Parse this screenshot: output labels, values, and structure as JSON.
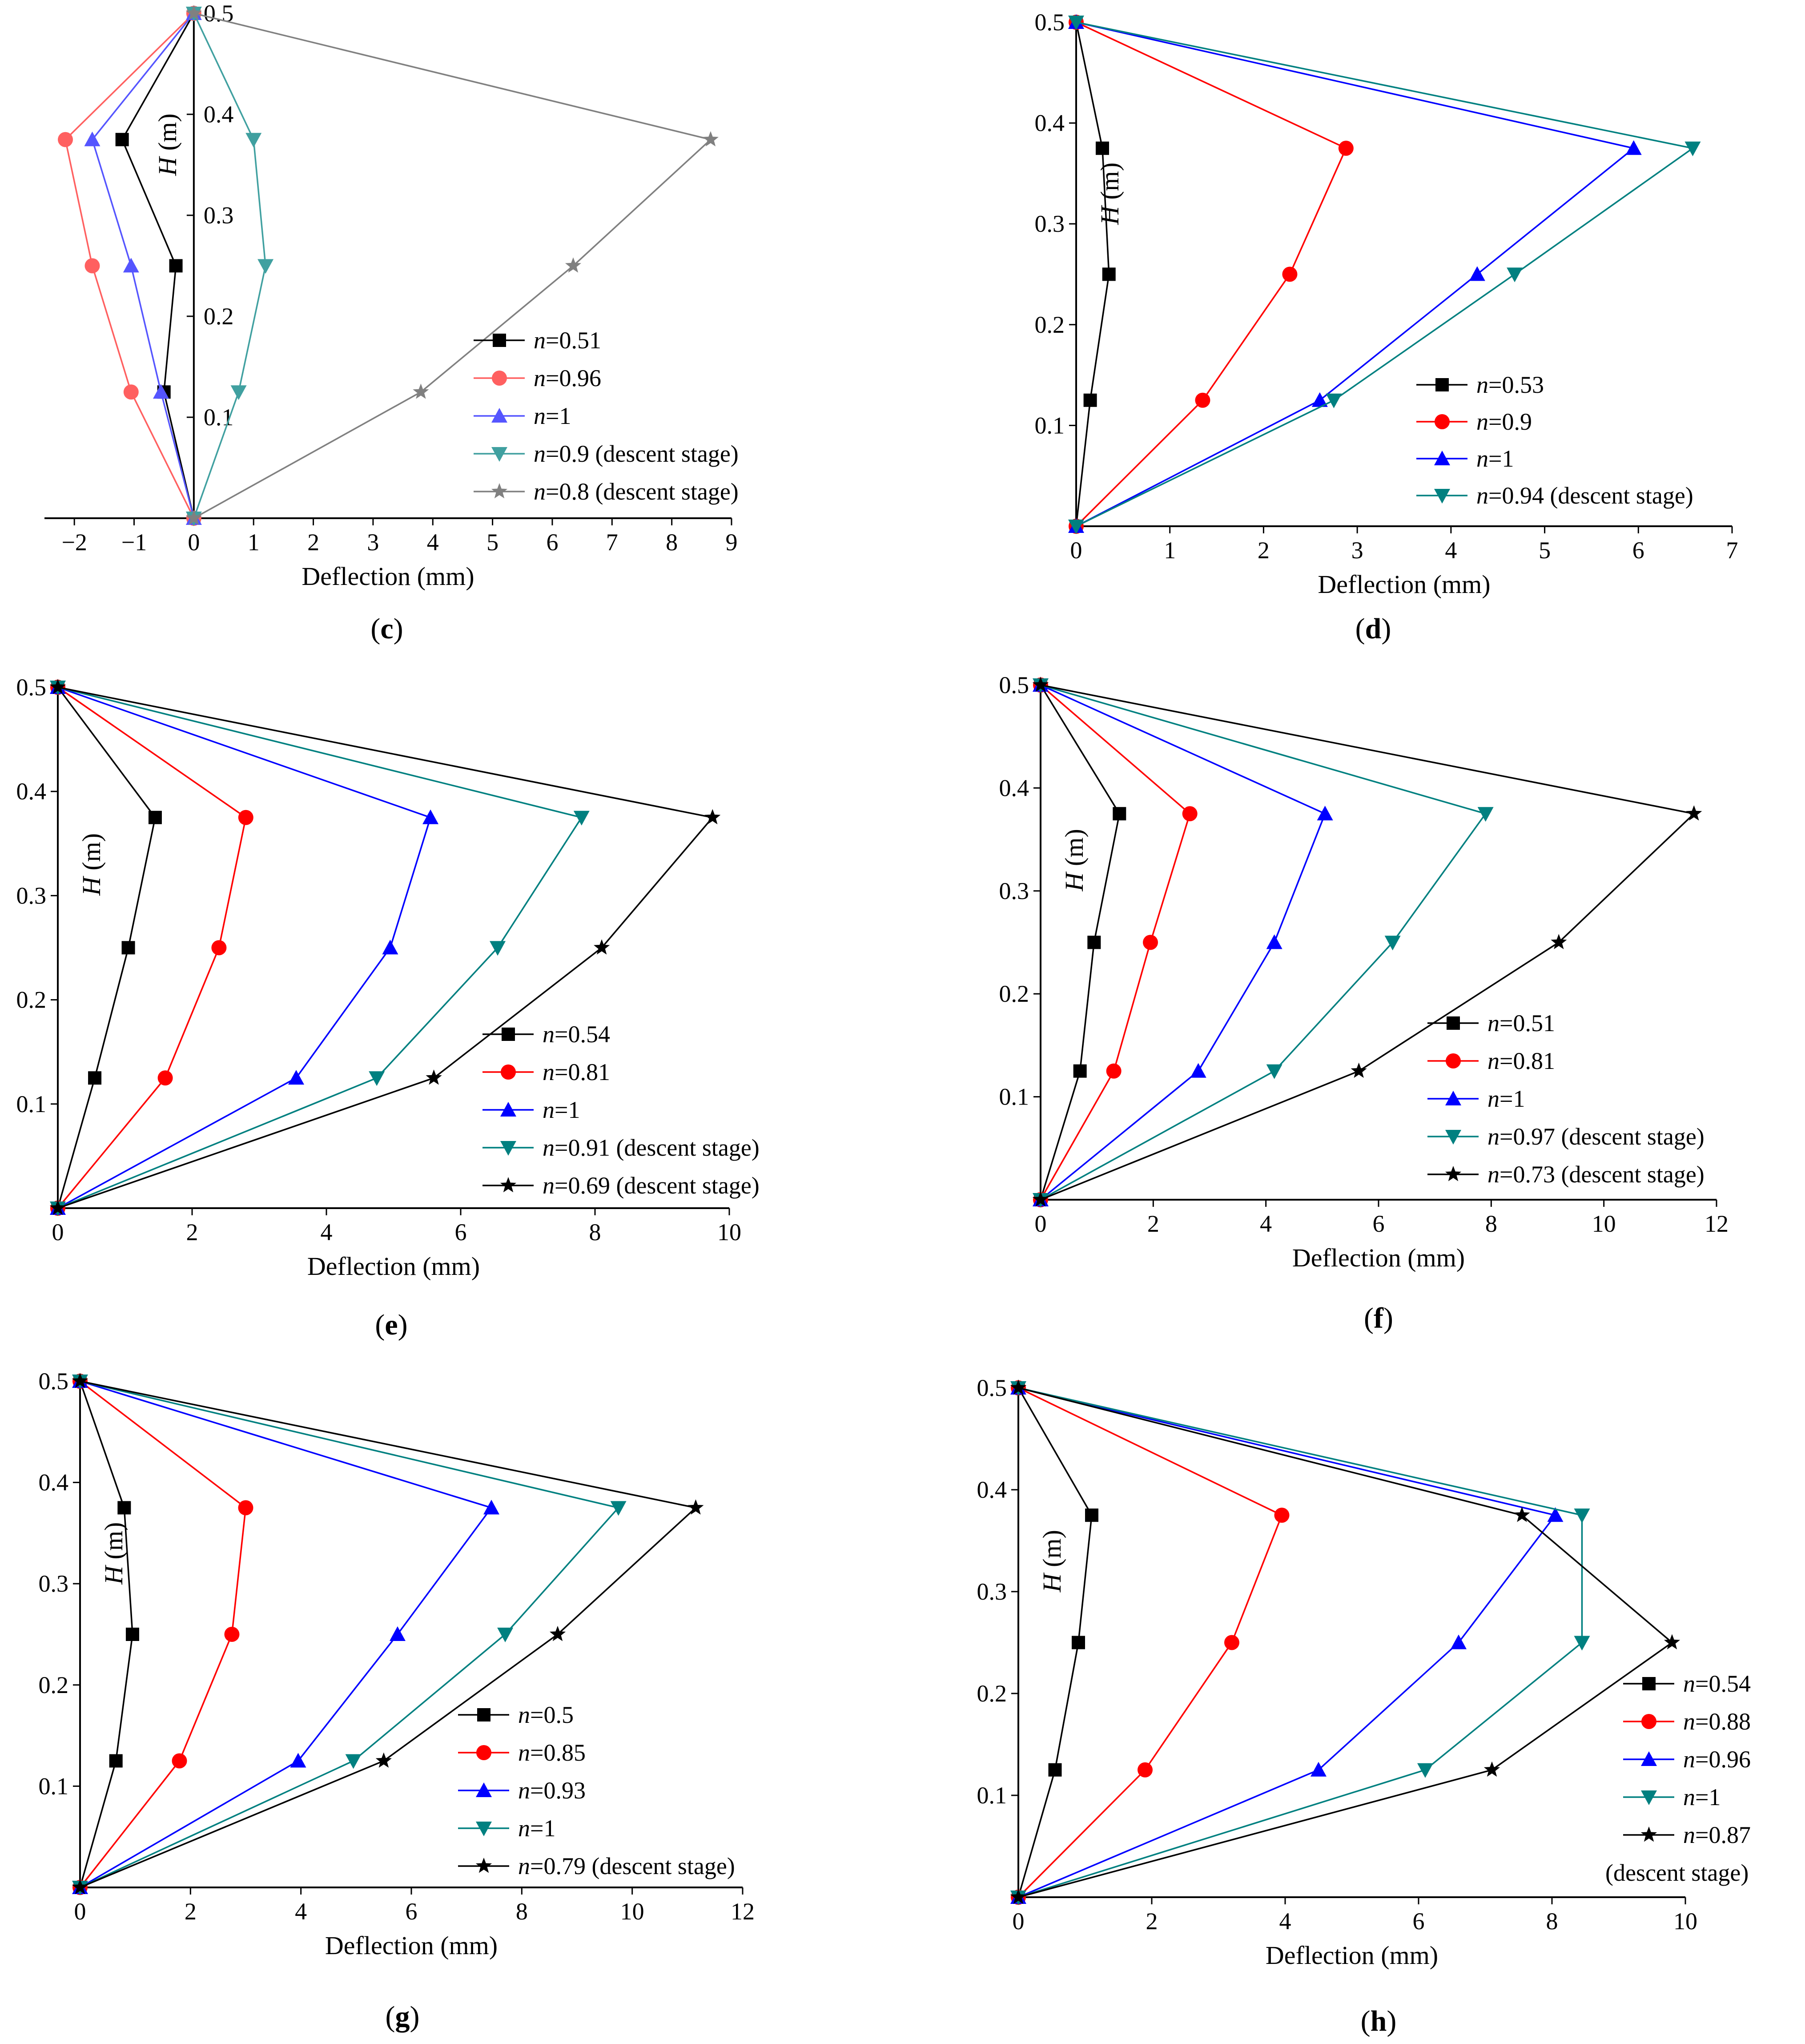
{
  "figure": {
    "label_open": "(",
    "label_close": ")"
  },
  "colors": {
    "black": "#000000",
    "red": "#ff0000",
    "blue": "#0000ff",
    "teal": "#008080",
    "gray": "#808080",
    "lightred": "#ff6060",
    "lightblue": "#5555ff",
    "lightteal": "#40a0a0"
  },
  "chart_data": [
    {
      "panel": "c",
      "type": "line",
      "xlabel": "Deflection (mm)",
      "ylabel_var": "H",
      "ylabel_unit": " (m)",
      "xlim": [
        -2.5,
        9
      ],
      "ylim": [
        0,
        0.5
      ],
      "xticks": [
        "−2",
        "−1",
        "0",
        "1",
        "2",
        "3",
        "4",
        "5",
        "6",
        "7",
        "8",
        "9"
      ],
      "xtick_values": [
        -2,
        -1,
        0,
        1,
        2,
        3,
        4,
        5,
        6,
        7,
        8,
        9
      ],
      "yticks": [
        "0.1",
        "0.2",
        "0.3",
        "0.4",
        "0.5"
      ],
      "ytick_values": [
        0.1,
        0.2,
        0.3,
        0.4,
        0.5
      ],
      "y_axis_at_zero": true,
      "legend_position": "lower-right",
      "series": [
        {
          "name": "n=0.51",
          "n_var": "n",
          "n_value": "=0.51",
          "suffix": "",
          "color": "black",
          "marker": "square",
          "x": [
            0,
            -0.5,
            -0.3,
            -1.2,
            0
          ],
          "y": [
            0,
            0.125,
            0.25,
            0.375,
            0.5
          ]
        },
        {
          "name": "n=0.96",
          "n_var": "n",
          "n_value": "=0.96",
          "suffix": "",
          "color": "lightred",
          "marker": "circle",
          "x": [
            0,
            -1.05,
            -1.7,
            -2.15,
            0
          ],
          "y": [
            0,
            0.125,
            0.25,
            0.375,
            0.5
          ]
        },
        {
          "name": "n=1",
          "n_var": "n",
          "n_value": "=1",
          "suffix": "",
          "color": "lightblue",
          "marker": "triangle-up",
          "x": [
            0,
            -0.55,
            -1.05,
            -1.7,
            0
          ],
          "y": [
            0,
            0.125,
            0.25,
            0.375,
            0.5
          ]
        },
        {
          "name": "n=0.9 (descent stage)",
          "n_var": "n",
          "n_value": "=0.9",
          "suffix": " (descent stage)",
          "color": "lightteal",
          "marker": "triangle-down",
          "x": [
            0,
            0.75,
            1.2,
            1.0,
            0
          ],
          "y": [
            0,
            0.125,
            0.25,
            0.375,
            0.5
          ]
        },
        {
          "name": "n=0.8 (descent stage)",
          "n_var": "n",
          "n_value": "=0.8",
          "suffix": " (descent stage)",
          "color": "gray",
          "marker": "star",
          "x": [
            0,
            3.8,
            6.35,
            8.65,
            0
          ],
          "y": [
            0,
            0.125,
            0.25,
            0.375,
            0.5
          ]
        }
      ]
    },
    {
      "panel": "d",
      "type": "line",
      "xlabel": "Deflection (mm)",
      "ylabel_var": "H",
      "ylabel_unit": " (m)",
      "xlim": [
        0,
        7
      ],
      "ylim": [
        0,
        0.5
      ],
      "xticks": [
        "0",
        "1",
        "2",
        "3",
        "4",
        "5",
        "6",
        "7"
      ],
      "xtick_values": [
        0,
        1,
        2,
        3,
        4,
        5,
        6,
        7
      ],
      "yticks": [
        "0.1",
        "0.2",
        "0.3",
        "0.4",
        "0.5"
      ],
      "ytick_values": [
        0.1,
        0.2,
        0.3,
        0.4,
        0.5
      ],
      "y_axis_at_zero": false,
      "legend_position": "lower-right",
      "series": [
        {
          "name": "n=0.53",
          "n_var": "n",
          "n_value": "=0.53",
          "suffix": "",
          "color": "black",
          "marker": "square",
          "x": [
            0,
            0.15,
            0.35,
            0.28,
            0
          ],
          "y": [
            0,
            0.125,
            0.25,
            0.375,
            0.5
          ]
        },
        {
          "name": "n=0.9",
          "n_var": "n",
          "n_value": "=0.9",
          "suffix": "",
          "color": "red",
          "marker": "circle",
          "x": [
            0,
            1.35,
            2.28,
            2.88,
            0
          ],
          "y": [
            0,
            0.125,
            0.25,
            0.375,
            0.5
          ]
        },
        {
          "name": "n=1",
          "n_var": "n",
          "n_value": "=1",
          "suffix": "",
          "color": "blue",
          "marker": "triangle-up",
          "x": [
            0,
            2.6,
            4.28,
            5.95,
            0
          ],
          "y": [
            0,
            0.125,
            0.25,
            0.375,
            0.5
          ]
        },
        {
          "name": "n=0.94 (descent stage)",
          "n_var": "n",
          "n_value": "=0.94",
          "suffix": " (descent stage)",
          "color": "teal",
          "marker": "triangle-down",
          "x": [
            0,
            2.75,
            4.68,
            6.58,
            0
          ],
          "y": [
            0,
            0.125,
            0.25,
            0.375,
            0.5
          ]
        }
      ]
    },
    {
      "panel": "e",
      "type": "line",
      "xlabel": "Deflection (mm)",
      "ylabel_var": "H",
      "ylabel_unit": " (m)",
      "xlim": [
        0,
        10
      ],
      "ylim": [
        0,
        0.5
      ],
      "xticks": [
        "0",
        "2",
        "4",
        "6",
        "8",
        "10"
      ],
      "xtick_values": [
        0,
        2,
        4,
        6,
        8,
        10
      ],
      "yticks": [
        "0.1",
        "0.2",
        "0.3",
        "0.4",
        "0.5"
      ],
      "ytick_values": [
        0.1,
        0.2,
        0.3,
        0.4,
        0.5
      ],
      "y_axis_at_zero": false,
      "legend_position": "lower-right",
      "series": [
        {
          "name": "n=0.54",
          "n_var": "n",
          "n_value": "=0.54",
          "suffix": "",
          "color": "black",
          "marker": "square",
          "x": [
            0,
            0.55,
            1.05,
            1.45,
            0
          ],
          "y": [
            0,
            0.125,
            0.25,
            0.375,
            0.5
          ]
        },
        {
          "name": "n=0.81",
          "n_var": "n",
          "n_value": "=0.81",
          "suffix": "",
          "color": "red",
          "marker": "circle",
          "x": [
            0,
            1.6,
            2.4,
            2.8,
            0
          ],
          "y": [
            0,
            0.125,
            0.25,
            0.375,
            0.5
          ]
        },
        {
          "name": "n=1",
          "n_var": "n",
          "n_value": "=1",
          "suffix": "",
          "color": "blue",
          "marker": "triangle-up",
          "x": [
            0,
            3.55,
            4.95,
            5.55,
            0
          ],
          "y": [
            0,
            0.125,
            0.25,
            0.375,
            0.5
          ]
        },
        {
          "name": "n=0.91 (descent stage)",
          "n_var": "n",
          "n_value": "=0.91",
          "suffix": " (descent stage)",
          "color": "teal",
          "marker": "triangle-down",
          "x": [
            0,
            4.75,
            6.55,
            7.8,
            0
          ],
          "y": [
            0,
            0.125,
            0.25,
            0.375,
            0.5
          ]
        },
        {
          "name": "n=0.69 (descent stage)",
          "n_var": "n",
          "n_value": "=0.69",
          "suffix": " (descent stage)",
          "color": "black",
          "marker": "star",
          "x": [
            0,
            5.6,
            8.1,
            9.75,
            0
          ],
          "y": [
            0,
            0.125,
            0.25,
            0.375,
            0.5
          ]
        }
      ]
    },
    {
      "panel": "f",
      "type": "line",
      "xlabel": "Deflection (mm)",
      "ylabel_var": "H",
      "ylabel_unit": " (m)",
      "xlim": [
        0,
        12
      ],
      "ylim": [
        0,
        0.5
      ],
      "xticks": [
        "0",
        "2",
        "4",
        "6",
        "8",
        "10",
        "12"
      ],
      "xtick_values": [
        0,
        2,
        4,
        6,
        8,
        10,
        12
      ],
      "yticks": [
        "0.1",
        "0.2",
        "0.3",
        "0.4",
        "0.5"
      ],
      "ytick_values": [
        0.1,
        0.2,
        0.3,
        0.4,
        0.5
      ],
      "y_axis_at_zero": false,
      "legend_position": "lower-right",
      "series": [
        {
          "name": "n=0.51",
          "n_var": "n",
          "n_value": "=0.51",
          "suffix": "",
          "color": "black",
          "marker": "square",
          "x": [
            0,
            0.7,
            0.95,
            1.4,
            0
          ],
          "y": [
            0,
            0.125,
            0.25,
            0.375,
            0.5
          ]
        },
        {
          "name": "n=0.81",
          "n_var": "n",
          "n_value": "=0.81",
          "suffix": "",
          "color": "red",
          "marker": "circle",
          "x": [
            0,
            1.3,
            1.95,
            2.65,
            0
          ],
          "y": [
            0,
            0.125,
            0.25,
            0.375,
            0.5
          ]
        },
        {
          "name": "n=1",
          "n_var": "n",
          "n_value": "=1",
          "suffix": "",
          "color": "blue",
          "marker": "triangle-up",
          "x": [
            0,
            2.8,
            4.15,
            5.05,
            0
          ],
          "y": [
            0,
            0.125,
            0.25,
            0.375,
            0.5
          ]
        },
        {
          "name": "n=0.97 (descent stage)",
          "n_var": "n",
          "n_value": "=0.97",
          "suffix": " (descent stage)",
          "color": "teal",
          "marker": "triangle-down",
          "x": [
            0,
            4.15,
            6.25,
            7.9,
            0
          ],
          "y": [
            0,
            0.125,
            0.25,
            0.375,
            0.5
          ]
        },
        {
          "name": "n=0.73 (descent stage)",
          "n_var": "n",
          "n_value": "=0.73",
          "suffix": " (descent stage)",
          "color": "black",
          "marker": "star",
          "x": [
            0,
            5.65,
            9.2,
            11.6,
            0
          ],
          "y": [
            0,
            0.125,
            0.25,
            0.375,
            0.5
          ]
        }
      ]
    },
    {
      "panel": "g",
      "type": "line",
      "xlabel": "Deflection (mm)",
      "ylabel_var": "H",
      "ylabel_unit": " (m)",
      "xlim": [
        0,
        12
      ],
      "ylim": [
        0,
        0.5
      ],
      "xticks": [
        "0",
        "2",
        "4",
        "6",
        "8",
        "10",
        "12"
      ],
      "xtick_values": [
        0,
        2,
        4,
        6,
        8,
        10,
        12
      ],
      "yticks": [
        "0.1",
        "0.2",
        "0.3",
        "0.4",
        "0.5"
      ],
      "ytick_values": [
        0.1,
        0.2,
        0.3,
        0.4,
        0.5
      ],
      "y_axis_at_zero": false,
      "legend_position": "lower-right",
      "series": [
        {
          "name": "n=0.5",
          "n_var": "n",
          "n_value": "=0.5",
          "suffix": "",
          "color": "black",
          "marker": "square",
          "x": [
            0,
            0.65,
            0.95,
            0.8,
            0
          ],
          "y": [
            0,
            0.125,
            0.25,
            0.375,
            0.5
          ]
        },
        {
          "name": "n=0.85",
          "n_var": "n",
          "n_value": "=0.85",
          "suffix": "",
          "color": "red",
          "marker": "circle",
          "x": [
            0,
            1.8,
            2.75,
            3.0,
            0
          ],
          "y": [
            0,
            0.125,
            0.25,
            0.375,
            0.5
          ]
        },
        {
          "name": "n=0.93",
          "n_var": "n",
          "n_value": "=0.93",
          "suffix": "",
          "color": "blue",
          "marker": "triangle-up",
          "x": [
            0,
            3.95,
            5.75,
            7.45,
            0
          ],
          "y": [
            0,
            0.125,
            0.25,
            0.375,
            0.5
          ]
        },
        {
          "name": "n=1",
          "n_var": "n",
          "n_value": "=1",
          "suffix": "",
          "color": "teal",
          "marker": "triangle-down",
          "x": [
            0,
            4.95,
            7.7,
            9.75,
            0
          ],
          "y": [
            0,
            0.125,
            0.25,
            0.375,
            0.5
          ]
        },
        {
          "name": "n=0.79 (descent stage)",
          "n_var": "n",
          "n_value": "=0.79",
          "suffix": " (descent stage)",
          "color": "black",
          "marker": "star",
          "x": [
            0,
            5.5,
            8.65,
            11.15,
            0
          ],
          "y": [
            0,
            0.125,
            0.25,
            0.375,
            0.5
          ]
        }
      ]
    },
    {
      "panel": "h",
      "type": "line",
      "xlabel": "Deflection (mm)",
      "ylabel_var": "H",
      "ylabel_unit": " (m)",
      "xlim": [
        0,
        10
      ],
      "ylim": [
        0,
        0.5
      ],
      "xticks": [
        "0",
        "2",
        "4",
        "6",
        "8",
        "10"
      ],
      "xtick_values": [
        0,
        2,
        4,
        6,
        8,
        10
      ],
      "yticks": [
        "0.1",
        "0.2",
        "0.3",
        "0.4",
        "0.5"
      ],
      "ytick_values": [
        0.1,
        0.2,
        0.3,
        0.4,
        0.5
      ],
      "y_axis_at_zero": false,
      "legend_position": "lower-right",
      "legend_extra_line": "(descent stage)",
      "series": [
        {
          "name": "n=0.54",
          "n_var": "n",
          "n_value": "=0.54",
          "suffix": "",
          "color": "black",
          "marker": "square",
          "x": [
            0,
            0.55,
            0.9,
            1.1,
            0
          ],
          "y": [
            0,
            0.125,
            0.25,
            0.375,
            0.5
          ]
        },
        {
          "name": "n=0.88",
          "n_var": "n",
          "n_value": "=0.88",
          "suffix": "",
          "color": "red",
          "marker": "circle",
          "x": [
            0,
            1.9,
            3.2,
            3.95,
            0
          ],
          "y": [
            0,
            0.125,
            0.25,
            0.375,
            0.5
          ]
        },
        {
          "name": "n=0.96",
          "n_var": "n",
          "n_value": "=0.96",
          "suffix": "",
          "color": "blue",
          "marker": "triangle-up",
          "x": [
            0,
            4.5,
            6.6,
            8.05,
            0
          ],
          "y": [
            0,
            0.125,
            0.25,
            0.375,
            0.5
          ]
        },
        {
          "name": "n=1",
          "n_var": "n",
          "n_value": "=1",
          "suffix": "",
          "color": "teal",
          "marker": "triangle-down",
          "x": [
            0,
            6.1,
            8.45,
            8.45,
            0
          ],
          "y": [
            0,
            0.125,
            0.25,
            0.375,
            0.5
          ]
        },
        {
          "name": "n=0.87",
          "n_var": "n",
          "n_value": "=0.87",
          "suffix": "",
          "color": "black",
          "marker": "star",
          "x": [
            0,
            7.1,
            9.8,
            7.55,
            0
          ],
          "y": [
            0,
            0.125,
            0.25,
            0.375,
            0.5
          ]
        }
      ]
    }
  ]
}
